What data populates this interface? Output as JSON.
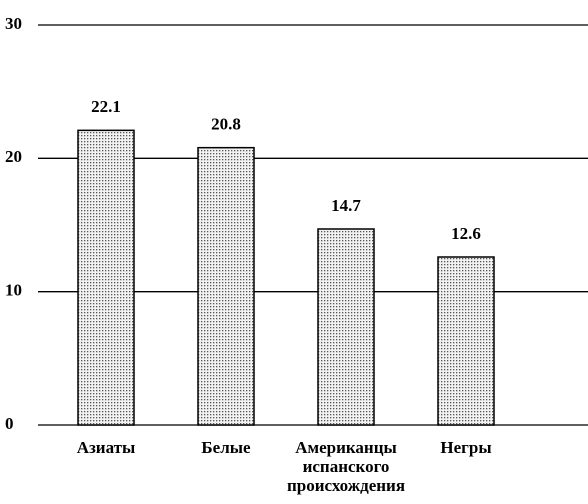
{
  "chart_data": {
    "type": "bar",
    "categories": [
      "Азиаты",
      "Белые",
      "Американцы испанского происхождения",
      "Негры"
    ],
    "values": [
      22.1,
      20.8,
      14.7,
      12.6
    ],
    "color": "#d9d9d9",
    "ylim": [
      0,
      30
    ],
    "yticks": [
      0,
      10,
      20,
      30
    ],
    "grid": true
  }
}
